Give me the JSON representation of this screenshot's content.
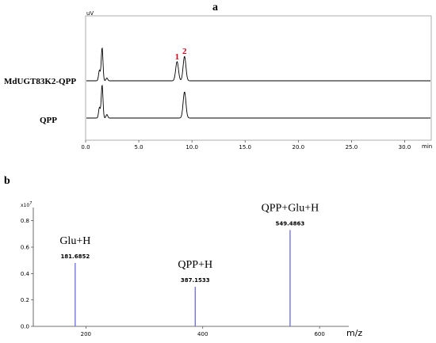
{
  "chart_data": [
    {
      "panel": "a",
      "type": "line",
      "y_unit": "uV",
      "x_unit": "min",
      "xlim": [
        0,
        32.5
      ],
      "x_ticks": [
        "0.0",
        "5.0",
        "10.0",
        "15.0",
        "20.0",
        "25.0",
        "30.0"
      ],
      "x_tick_values": [
        0,
        5,
        10,
        15,
        20,
        25,
        30
      ],
      "series": [
        {
          "name": "MdUGT83K2-QPP",
          "peaks": [
            {
              "rt": 1.3,
              "height": 0.3
            },
            {
              "rt": 1.55,
              "height": 0.95
            },
            {
              "rt": 2.0,
              "height": 0.08
            },
            {
              "rt": 8.6,
              "height": 0.55,
              "label": "1"
            },
            {
              "rt": 9.3,
              "height": 0.7,
              "label": "2"
            }
          ]
        },
        {
          "name": "QPP",
          "peaks": [
            {
              "rt": 1.3,
              "height": 0.3
            },
            {
              "rt": 1.55,
              "height": 0.95
            },
            {
              "rt": 2.0,
              "height": 0.1
            },
            {
              "rt": 9.3,
              "height": 0.75
            }
          ]
        }
      ]
    },
    {
      "panel": "b",
      "type": "bar",
      "y_multiplier": "x10",
      "y_multiplier_exp": "7",
      "xlabel": "m/z",
      "xlim": [
        110,
        650
      ],
      "ylim": [
        0,
        0.9
      ],
      "x_ticks": [
        "200",
        "400",
        "600"
      ],
      "x_tick_values": [
        200,
        400,
        600
      ],
      "y_ticks": [
        "0.0",
        "0.2",
        "0.4",
        "0.6",
        "0.8"
      ],
      "y_tick_values": [
        0,
        0.2,
        0.4,
        0.6,
        0.8
      ],
      "peaks": [
        {
          "mz": 181.6852,
          "mz_label": "181.6852",
          "intensity": 0.48,
          "ion": "Glu+H"
        },
        {
          "mz": 387.1533,
          "mz_label": "387.1533",
          "intensity": 0.3,
          "ion": "QPP+H"
        },
        {
          "mz": 549.4863,
          "mz_label": "549.4863",
          "intensity": 0.73,
          "ion": "QPP+Glu+H"
        }
      ]
    }
  ]
}
